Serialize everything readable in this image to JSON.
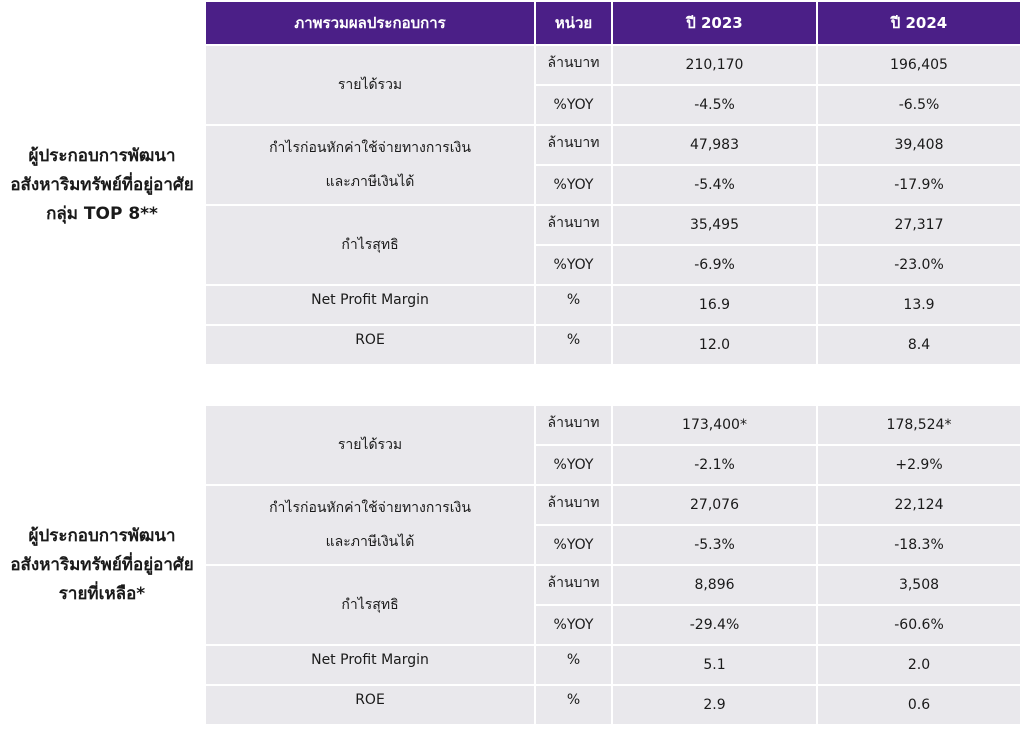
{
  "header": {
    "overview": "ภาพรวมผลประกอบการ",
    "unit": "หน่วย",
    "y2023": "ปี 2023",
    "y2024": "ปี 2024"
  },
  "group1": {
    "title_lines": [
      "ผู้ประกอบการพัฒนา",
      "อสังหาริมทรัพย์ที่อยู่อาศัย",
      "กลุ่ม TOP 8**"
    ],
    "revenue": {
      "label": "รายได้รวม",
      "unit_value": "ล้านบาท",
      "unit_yoy": "%YOY",
      "v2023": "210,170",
      "v2024": "196,405",
      "yoy2023": "-4.5%",
      "yoy2024": "-6.5%"
    },
    "ebit": {
      "label_lines": [
        "กำไรก่อนหักค่าใช้จ่ายทางการเงิน",
        "และภาษีเงินได้"
      ],
      "unit_value": "ล้านบาท",
      "unit_yoy": "%YOY",
      "v2023": "47,983",
      "v2024": "39,408",
      "yoy2023": "-5.4%",
      "yoy2024": "-17.9%"
    },
    "net": {
      "label": "กำไรสุทธิ",
      "unit_value": "ล้านบาท",
      "unit_yoy": "%YOY",
      "v2023": "35,495",
      "v2024": "27,317",
      "yoy2023": "-6.9%",
      "yoy2024": "-23.0%"
    },
    "npm": {
      "label": "Net Profit Margin",
      "unit": "%",
      "v2023": "16.9",
      "v2024": "13.9"
    },
    "roe": {
      "label": "ROE",
      "unit": "%",
      "v2023": "12.0",
      "v2024": "8.4"
    }
  },
  "group2": {
    "title_lines": [
      "ผู้ประกอบการพัฒนา",
      "อสังหาริมทรัพย์ที่อยู่อาศัย",
      "รายที่เหลือ*"
    ],
    "revenue": {
      "label": "รายได้รวม",
      "unit_value": "ล้านบาท",
      "unit_yoy": "%YOY",
      "v2023": "173,400*",
      "v2024": "178,524*",
      "yoy2023": "-2.1%",
      "yoy2024": "+2.9%"
    },
    "ebit": {
      "label_lines": [
        "กำไรก่อนหักค่าใช้จ่ายทางการเงิน",
        "และภาษีเงินได้"
      ],
      "unit_value": "ล้านบาท",
      "unit_yoy": "%YOY",
      "v2023": "27,076",
      "v2024": "22,124",
      "yoy2023": "-5.3%",
      "yoy2024": "-18.3%"
    },
    "net": {
      "label": "กำไรสุทธิ",
      "unit_value": "ล้านบาท",
      "unit_yoy": "%YOY",
      "v2023": "8,896",
      "v2024": "3,508",
      "yoy2023": "-29.4%",
      "yoy2024": "-60.6%"
    },
    "npm": {
      "label": "Net Profit Margin",
      "unit": "%",
      "v2023": "5.1",
      "v2024": "2.0"
    },
    "roe": {
      "label": "ROE",
      "unit": "%",
      "v2023": "2.9",
      "v2024": "0.6"
    }
  },
  "colors": {
    "header_bg": "#4b1f87",
    "row_bg": "#e9e8ec"
  }
}
